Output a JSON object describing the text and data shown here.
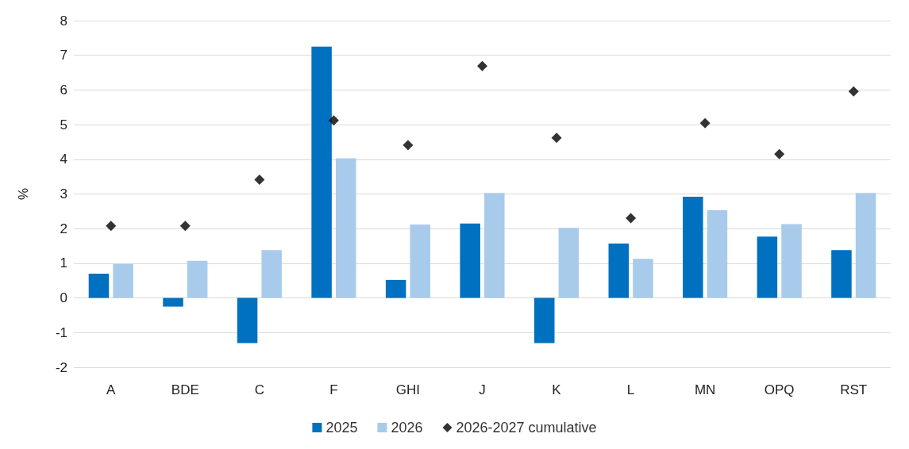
{
  "chart_data": {
    "type": "bar",
    "ylabel": "%",
    "categories": [
      "A",
      "BDE",
      "C",
      "F",
      "GHI",
      "J",
      "K",
      "L",
      "MN",
      "OPQ",
      "RST"
    ],
    "series": [
      {
        "name": "2025",
        "color": "#0070c0",
        "values": [
          0.7,
          -0.25,
          -1.3,
          7.25,
          0.52,
          2.15,
          -1.3,
          1.57,
          2.92,
          1.77,
          1.38
        ]
      },
      {
        "name": "2026",
        "color": "#a9cbeb",
        "values": [
          0.98,
          1.07,
          1.38,
          4.03,
          2.12,
          3.03,
          2.02,
          1.13,
          2.53,
          2.13,
          3.03
        ]
      },
      {
        "name": "2026-2027 cumulative",
        "type": "scatter",
        "color": "#000000",
        "marker": "diamond",
        "values": [
          2.08,
          2.08,
          3.41,
          5.12,
          4.41,
          6.69,
          4.62,
          2.3,
          5.04,
          4.15,
          5.96
        ]
      }
    ],
    "ylim": [
      -2,
      8
    ],
    "yticks": [
      -2,
      -1,
      0,
      1,
      2,
      3,
      4,
      5,
      6,
      7,
      8
    ],
    "grid": "y",
    "legend": "bottom"
  }
}
